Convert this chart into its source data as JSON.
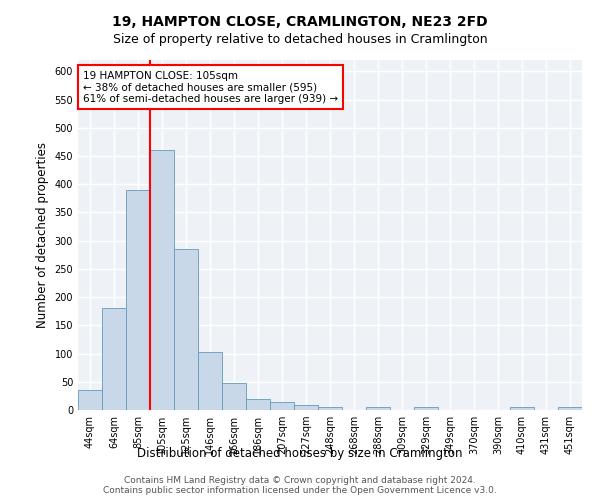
{
  "title": "19, HAMPTON CLOSE, CRAMLINGTON, NE23 2FD",
  "subtitle": "Size of property relative to detached houses in Cramlington",
  "xlabel": "Distribution of detached houses by size in Cramlington",
  "ylabel": "Number of detached properties",
  "categories": [
    "44sqm",
    "64sqm",
    "85sqm",
    "105sqm",
    "125sqm",
    "146sqm",
    "166sqm",
    "186sqm",
    "207sqm",
    "227sqm",
    "248sqm",
    "268sqm",
    "288sqm",
    "309sqm",
    "329sqm",
    "349sqm",
    "370sqm",
    "390sqm",
    "410sqm",
    "431sqm",
    "451sqm"
  ],
  "values": [
    35,
    180,
    390,
    460,
    285,
    103,
    48,
    20,
    15,
    8,
    5,
    0,
    5,
    0,
    5,
    0,
    0,
    0,
    5,
    0,
    5
  ],
  "bar_color": "#c8d8e8",
  "bar_edge_color": "#6699bb",
  "red_line_index": 3,
  "annotation_text": "19 HAMPTON CLOSE: 105sqm\n← 38% of detached houses are smaller (595)\n61% of semi-detached houses are larger (939) →",
  "annotation_box_color": "white",
  "annotation_box_edge_color": "red",
  "ylim": [
    0,
    620
  ],
  "yticks": [
    0,
    50,
    100,
    150,
    200,
    250,
    300,
    350,
    400,
    450,
    500,
    550,
    600
  ],
  "footer_line1": "Contains HM Land Registry data © Crown copyright and database right 2024.",
  "footer_line2": "Contains public sector information licensed under the Open Government Licence v3.0.",
  "background_color": "#eef2f7",
  "grid_color": "white",
  "title_fontsize": 10,
  "subtitle_fontsize": 9,
  "axis_label_fontsize": 8.5,
  "tick_fontsize": 7,
  "annotation_fontsize": 7.5,
  "footer_fontsize": 6.5
}
